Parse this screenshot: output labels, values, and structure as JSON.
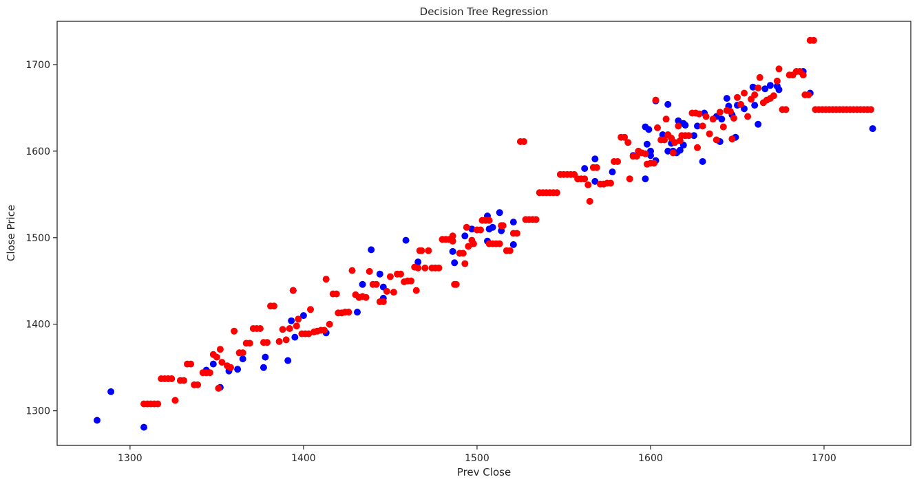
{
  "chart_data": {
    "type": "scatter",
    "title": "Decision Tree Regression",
    "xlabel": "Prev Close",
    "ylabel": "Close Price",
    "xlim": [
      1258,
      1750
    ],
    "ylim": [
      1260,
      1750
    ],
    "xticks": [
      1300,
      1400,
      1500,
      1600,
      1700
    ],
    "yticks": [
      1300,
      1400,
      1500,
      1600,
      1700
    ],
    "grid": false,
    "colors": {
      "actual": "#0000ff",
      "predicted": "#ff0000",
      "axes": "#262626"
    },
    "series": [
      {
        "color": "#0000ff",
        "points": [
          [
            1281,
            1289
          ],
          [
            1289,
            1322
          ],
          [
            1308,
            1281
          ],
          [
            1344,
            1347
          ],
          [
            1348,
            1354
          ],
          [
            1352,
            1327
          ],
          [
            1357,
            1346
          ],
          [
            1362,
            1348
          ],
          [
            1365,
            1360
          ],
          [
            1377,
            1350
          ],
          [
            1378,
            1362
          ],
          [
            1391,
            1358
          ],
          [
            1393,
            1404
          ],
          [
            1394,
            1439
          ],
          [
            1395,
            1385
          ],
          [
            1400,
            1410
          ],
          [
            1413,
            1390
          ],
          [
            1431,
            1414
          ],
          [
            1434,
            1446
          ],
          [
            1439,
            1486
          ],
          [
            1444,
            1458
          ],
          [
            1446,
            1430
          ],
          [
            1446,
            1443
          ],
          [
            1459,
            1497
          ],
          [
            1466,
            1472
          ],
          [
            1486,
            1484
          ],
          [
            1487,
            1471
          ],
          [
            1493,
            1502
          ],
          [
            1497,
            1510
          ],
          [
            1506,
            1525
          ],
          [
            1506,
            1496
          ],
          [
            1507,
            1510
          ],
          [
            1509,
            1512
          ],
          [
            1513,
            1529
          ],
          [
            1514,
            1508
          ],
          [
            1521,
            1518
          ],
          [
            1521,
            1492
          ],
          [
            1562,
            1580
          ],
          [
            1568,
            1591
          ],
          [
            1568,
            1565
          ],
          [
            1578,
            1576
          ],
          [
            1590,
            1595
          ],
          [
            1597,
            1568
          ],
          [
            1597,
            1628
          ],
          [
            1598,
            1608
          ],
          [
            1599,
            1625
          ],
          [
            1600,
            1600
          ],
          [
            1600,
            1595
          ],
          [
            1603,
            1589
          ],
          [
            1603,
            1658
          ],
          [
            1607,
            1619
          ],
          [
            1610,
            1600
          ],
          [
            1610,
            1654
          ],
          [
            1612,
            1609
          ],
          [
            1613,
            1600
          ],
          [
            1615,
            1598
          ],
          [
            1616,
            1635
          ],
          [
            1617,
            1601
          ],
          [
            1619,
            1607
          ],
          [
            1619,
            1632
          ],
          [
            1620,
            1630
          ],
          [
            1625,
            1618
          ],
          [
            1627,
            1629
          ],
          [
            1630,
            1588
          ],
          [
            1631,
            1644
          ],
          [
            1638,
            1640
          ],
          [
            1640,
            1611
          ],
          [
            1641,
            1637
          ],
          [
            1644,
            1661
          ],
          [
            1645,
            1652
          ],
          [
            1647,
            1642
          ],
          [
            1649,
            1616
          ],
          [
            1650,
            1653
          ],
          [
            1654,
            1649
          ],
          [
            1659,
            1674
          ],
          [
            1660,
            1653
          ],
          [
            1662,
            1631
          ],
          [
            1666,
            1672
          ],
          [
            1669,
            1676
          ],
          [
            1673,
            1675
          ],
          [
            1674,
            1671
          ],
          [
            1688,
            1692
          ],
          [
            1692,
            1667
          ],
          [
            1728,
            1626
          ]
        ]
      },
      {
        "color": "#ff0000",
        "points": [
          [
            1308,
            1308
          ],
          [
            1310,
            1308
          ],
          [
            1312,
            1308
          ],
          [
            1314,
            1308
          ],
          [
            1316,
            1308
          ],
          [
            1318,
            1337
          ],
          [
            1320,
            1337
          ],
          [
            1322,
            1337
          ],
          [
            1324,
            1337
          ],
          [
            1326,
            1312
          ],
          [
            1329,
            1335
          ],
          [
            1331,
            1335
          ],
          [
            1333,
            1354
          ],
          [
            1335,
            1354
          ],
          [
            1337,
            1330
          ],
          [
            1339,
            1330
          ],
          [
            1342,
            1344
          ],
          [
            1344,
            1344
          ],
          [
            1346,
            1344
          ],
          [
            1348,
            1365
          ],
          [
            1350,
            1362
          ],
          [
            1351,
            1326
          ],
          [
            1352,
            1371
          ],
          [
            1353,
            1356
          ],
          [
            1356,
            1352
          ],
          [
            1358,
            1350
          ],
          [
            1360,
            1392
          ],
          [
            1363,
            1367
          ],
          [
            1365,
            1367
          ],
          [
            1367,
            1378
          ],
          [
            1369,
            1378
          ],
          [
            1371,
            1395
          ],
          [
            1373,
            1395
          ],
          [
            1375,
            1395
          ],
          [
            1377,
            1379
          ],
          [
            1379,
            1379
          ],
          [
            1381,
            1421
          ],
          [
            1383,
            1421
          ],
          [
            1386,
            1380
          ],
          [
            1388,
            1394
          ],
          [
            1390,
            1382
          ],
          [
            1392,
            1395
          ],
          [
            1394,
            1439
          ],
          [
            1396,
            1398
          ],
          [
            1397,
            1406
          ],
          [
            1399,
            1389
          ],
          [
            1401,
            1389
          ],
          [
            1403,
            1389
          ],
          [
            1404,
            1417
          ],
          [
            1406,
            1391
          ],
          [
            1408,
            1392
          ],
          [
            1410,
            1393
          ],
          [
            1412,
            1393
          ],
          [
            1413,
            1452
          ],
          [
            1415,
            1400
          ],
          [
            1417,
            1435
          ],
          [
            1419,
            1435
          ],
          [
            1420,
            1413
          ],
          [
            1422,
            1413
          ],
          [
            1424,
            1414
          ],
          [
            1426,
            1414
          ],
          [
            1428,
            1462
          ],
          [
            1430,
            1434
          ],
          [
            1432,
            1431
          ],
          [
            1434,
            1432
          ],
          [
            1436,
            1431
          ],
          [
            1438,
            1461
          ],
          [
            1440,
            1446
          ],
          [
            1442,
            1446
          ],
          [
            1444,
            1426
          ],
          [
            1446,
            1426
          ],
          [
            1448,
            1438
          ],
          [
            1450,
            1455
          ],
          [
            1452,
            1437
          ],
          [
            1454,
            1458
          ],
          [
            1456,
            1458
          ],
          [
            1458,
            1449
          ],
          [
            1460,
            1450
          ],
          [
            1462,
            1450
          ],
          [
            1464,
            1466
          ],
          [
            1465,
            1439
          ],
          [
            1466,
            1465
          ],
          [
            1467,
            1485
          ],
          [
            1468,
            1485
          ],
          [
            1470,
            1465
          ],
          [
            1472,
            1485
          ],
          [
            1474,
            1465
          ],
          [
            1476,
            1465
          ],
          [
            1478,
            1465
          ],
          [
            1480,
            1498
          ],
          [
            1482,
            1498
          ],
          [
            1484,
            1498
          ],
          [
            1486,
            1502
          ],
          [
            1486,
            1496
          ],
          [
            1487,
            1446
          ],
          [
            1488,
            1446
          ],
          [
            1490,
            1482
          ],
          [
            1492,
            1482
          ],
          [
            1493,
            1470
          ],
          [
            1494,
            1512
          ],
          [
            1495,
            1490
          ],
          [
            1497,
            1497
          ],
          [
            1498,
            1493
          ],
          [
            1500,
            1509
          ],
          [
            1502,
            1509
          ],
          [
            1503,
            1520
          ],
          [
            1505,
            1520
          ],
          [
            1507,
            1520
          ],
          [
            1507,
            1493
          ],
          [
            1509,
            1493
          ],
          [
            1511,
            1493
          ],
          [
            1513,
            1493
          ],
          [
            1514,
            1514
          ],
          [
            1515,
            1514
          ],
          [
            1517,
            1485
          ],
          [
            1519,
            1485
          ],
          [
            1521,
            1505
          ],
          [
            1523,
            1505
          ],
          [
            1525,
            1611
          ],
          [
            1527,
            1611
          ],
          [
            1528,
            1521
          ],
          [
            1530,
            1521
          ],
          [
            1532,
            1521
          ],
          [
            1534,
            1521
          ],
          [
            1536,
            1552
          ],
          [
            1538,
            1552
          ],
          [
            1540,
            1552
          ],
          [
            1542,
            1552
          ],
          [
            1544,
            1552
          ],
          [
            1546,
            1552
          ],
          [
            1548,
            1573
          ],
          [
            1550,
            1573
          ],
          [
            1552,
            1573
          ],
          [
            1554,
            1573
          ],
          [
            1556,
            1573
          ],
          [
            1558,
            1568
          ],
          [
            1560,
            1568
          ],
          [
            1562,
            1568
          ],
          [
            1564,
            1561
          ],
          [
            1565,
            1542
          ],
          [
            1567,
            1581
          ],
          [
            1569,
            1581
          ],
          [
            1571,
            1562
          ],
          [
            1573,
            1562
          ],
          [
            1575,
            1563
          ],
          [
            1577,
            1563
          ],
          [
            1579,
            1588
          ],
          [
            1581,
            1588
          ],
          [
            1583,
            1616
          ],
          [
            1585,
            1616
          ],
          [
            1587,
            1610
          ],
          [
            1588,
            1568
          ],
          [
            1590,
            1594
          ],
          [
            1592,
            1594
          ],
          [
            1593,
            1600
          ],
          [
            1595,
            1598
          ],
          [
            1597,
            1597
          ],
          [
            1598,
            1585
          ],
          [
            1600,
            1586
          ],
          [
            1602,
            1586
          ],
          [
            1603,
            1659
          ],
          [
            1604,
            1627
          ],
          [
            1606,
            1613
          ],
          [
            1608,
            1613
          ],
          [
            1609,
            1637
          ],
          [
            1610,
            1619
          ],
          [
            1612,
            1615
          ],
          [
            1613,
            1598
          ],
          [
            1614,
            1610
          ],
          [
            1616,
            1629
          ],
          [
            1617,
            1612
          ],
          [
            1618,
            1618
          ],
          [
            1620,
            1618
          ],
          [
            1622,
            1618
          ],
          [
            1624,
            1644
          ],
          [
            1626,
            1644
          ],
          [
            1627,
            1604
          ],
          [
            1628,
            1643
          ],
          [
            1630,
            1629
          ],
          [
            1632,
            1640
          ],
          [
            1634,
            1620
          ],
          [
            1636,
            1637
          ],
          [
            1638,
            1613
          ],
          [
            1640,
            1645
          ],
          [
            1642,
            1628
          ],
          [
            1644,
            1647
          ],
          [
            1646,
            1646
          ],
          [
            1647,
            1614
          ],
          [
            1648,
            1638
          ],
          [
            1650,
            1662
          ],
          [
            1652,
            1654
          ],
          [
            1654,
            1667
          ],
          [
            1656,
            1640
          ],
          [
            1658,
            1660
          ],
          [
            1660,
            1665
          ],
          [
            1662,
            1673
          ],
          [
            1663,
            1685
          ],
          [
            1665,
            1656
          ],
          [
            1667,
            1659
          ],
          [
            1669,
            1661
          ],
          [
            1671,
            1664
          ],
          [
            1673,
            1681
          ],
          [
            1674,
            1695
          ],
          [
            1676,
            1648
          ],
          [
            1678,
            1648
          ],
          [
            1680,
            1688
          ],
          [
            1682,
            1688
          ],
          [
            1684,
            1692
          ],
          [
            1686,
            1692
          ],
          [
            1688,
            1688
          ],
          [
            1689,
            1665
          ],
          [
            1691,
            1665
          ],
          [
            1692,
            1728
          ],
          [
            1694,
            1728
          ],
          [
            1695,
            1648
          ],
          [
            1697,
            1648
          ],
          [
            1699,
            1648
          ],
          [
            1701,
            1648
          ],
          [
            1703,
            1648
          ],
          [
            1705,
            1648
          ],
          [
            1707,
            1648
          ],
          [
            1709,
            1648
          ],
          [
            1711,
            1648
          ],
          [
            1713,
            1648
          ],
          [
            1715,
            1648
          ],
          [
            1717,
            1648
          ],
          [
            1719,
            1648
          ],
          [
            1721,
            1648
          ],
          [
            1723,
            1648
          ],
          [
            1725,
            1648
          ],
          [
            1727,
            1648
          ]
        ]
      }
    ]
  }
}
